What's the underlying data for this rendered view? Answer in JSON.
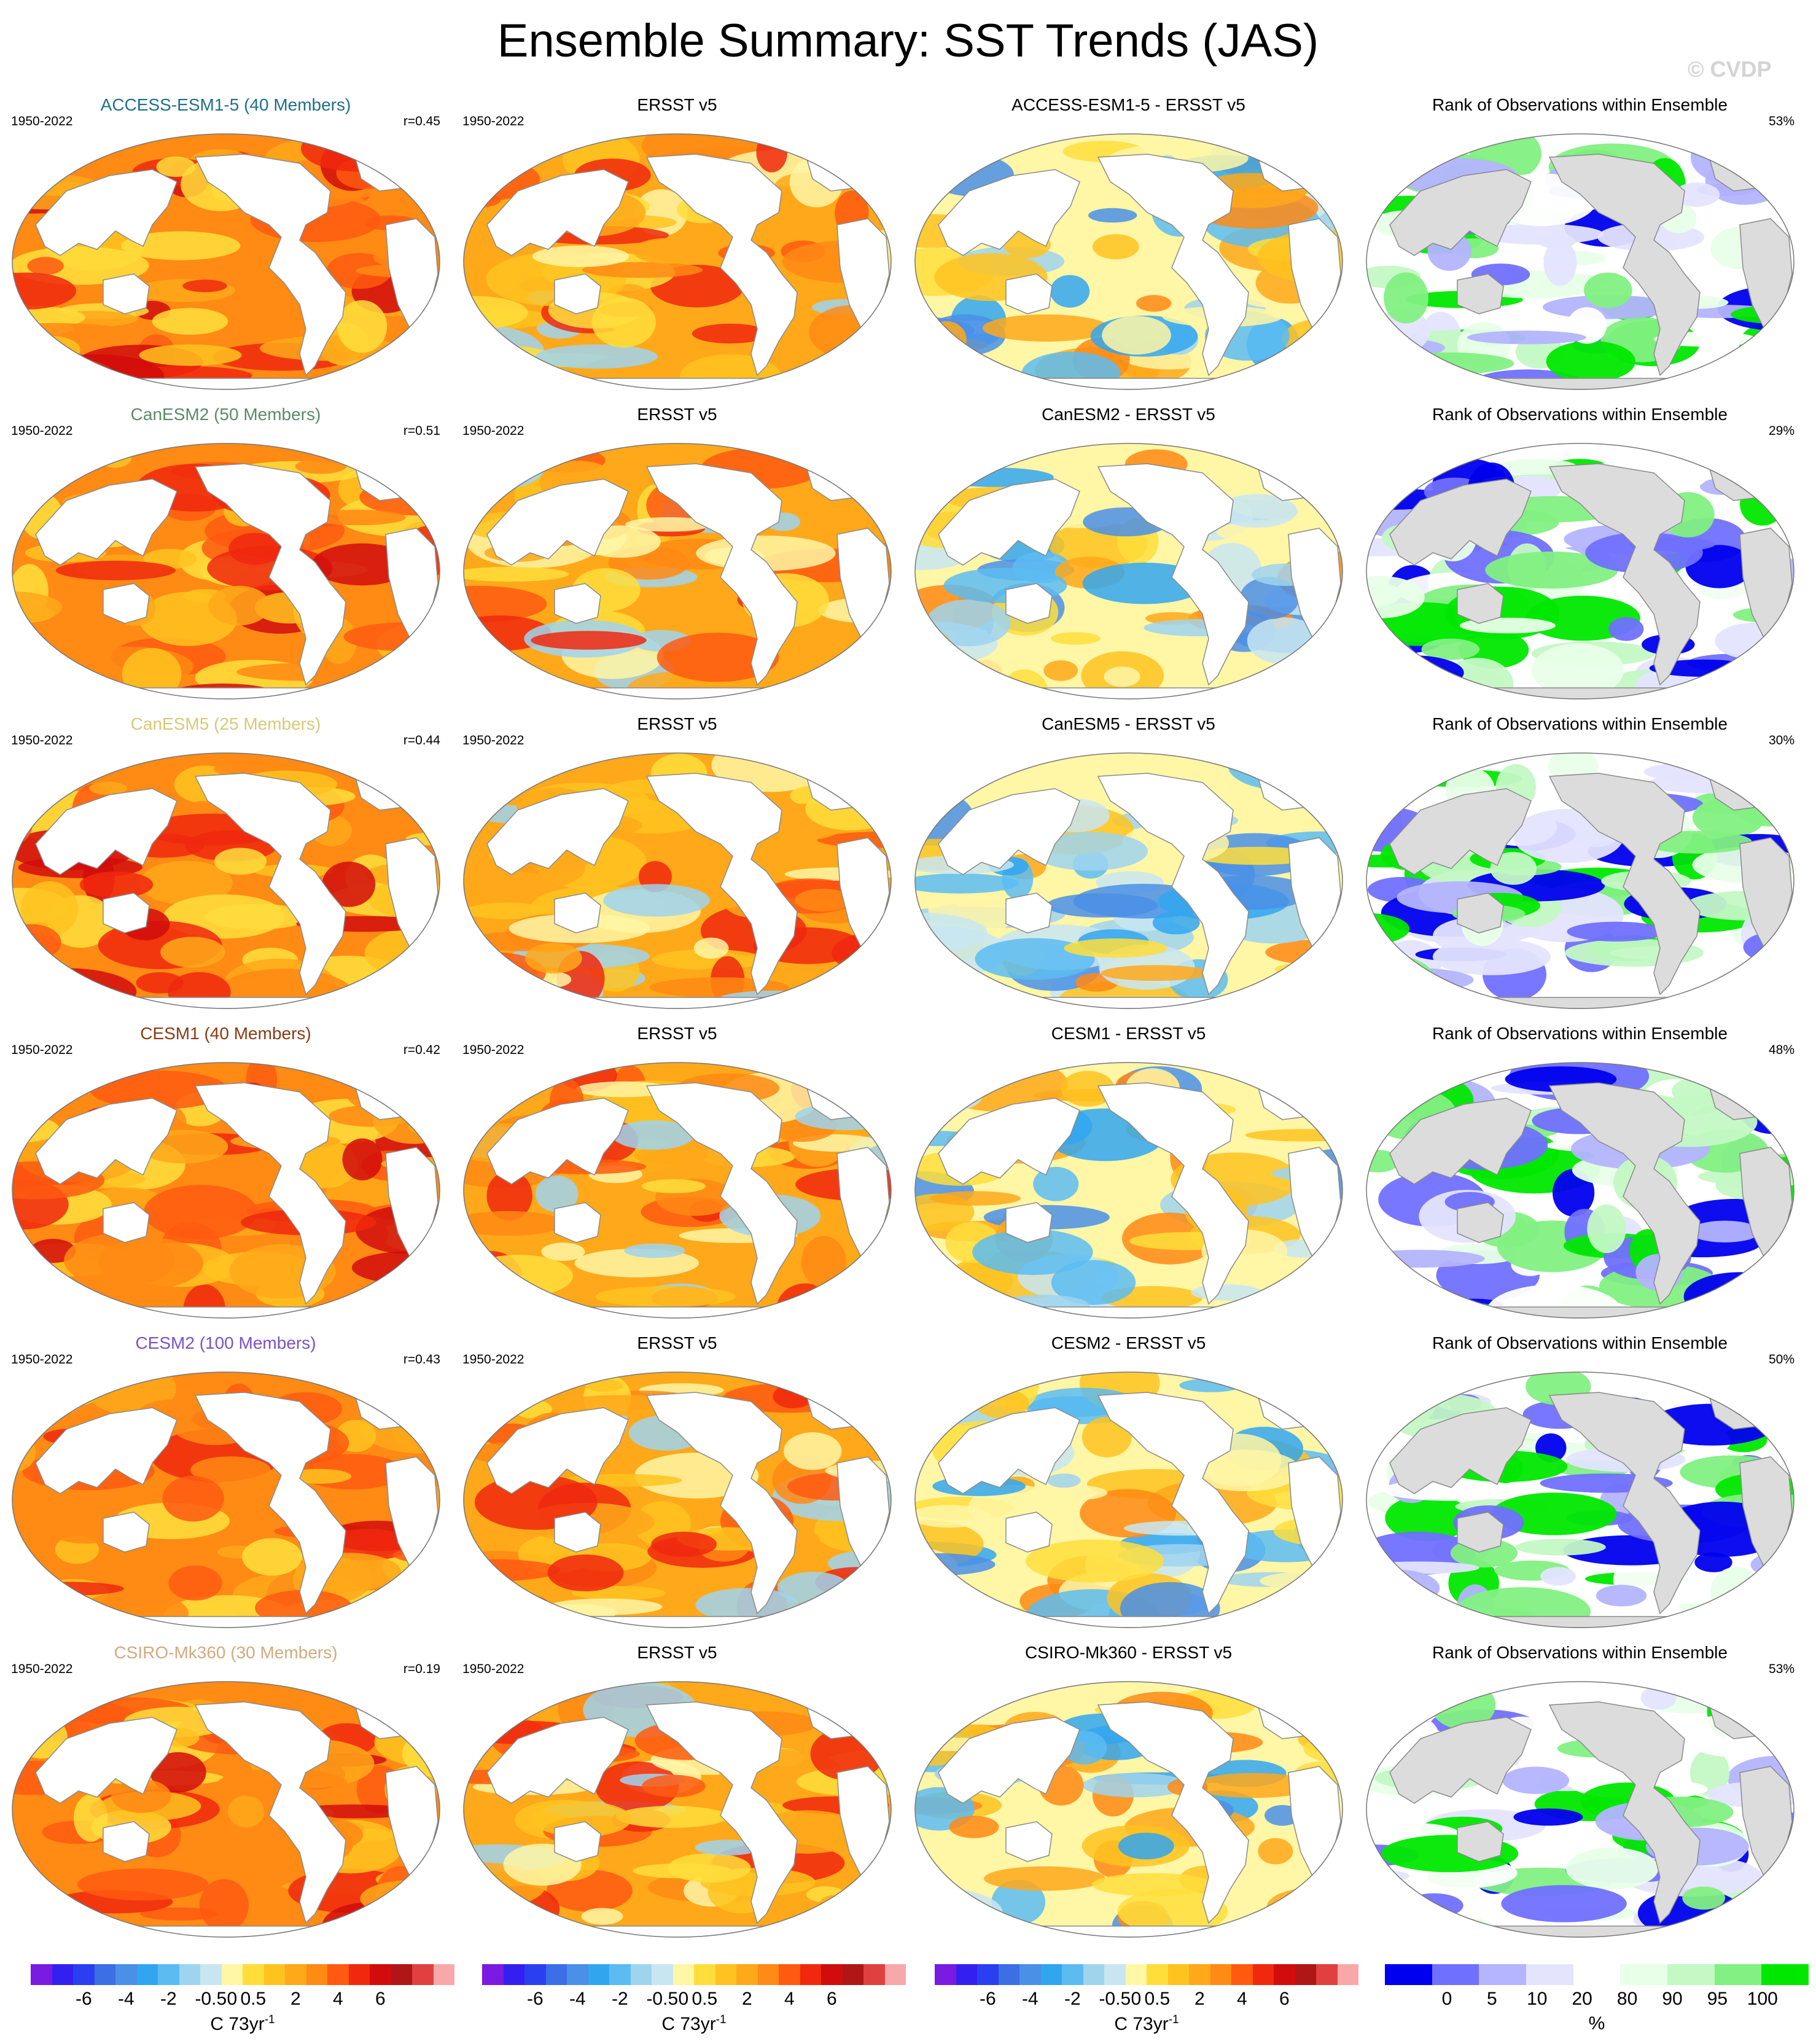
{
  "figure": {
    "title": "Ensemble Summary: SST Trends (JAS)",
    "watermark": "© CVDP"
  },
  "colors": {
    "trend_levels": [
      "#7b1ae0",
      "#3320f0",
      "#2a40f0",
      "#3c6ee6",
      "#4a8fe8",
      "#31a6f0",
      "#5cbcf2",
      "#9fd4ee",
      "#c8e6f2",
      "#fff6a6",
      "#ffde3c",
      "#ffc320",
      "#ffa81a",
      "#ff8a14",
      "#ff5a10",
      "#f0280e",
      "#d20c0c",
      "#b01616",
      "#e04040",
      "#f8a8a8"
    ],
    "rank_levels": [
      "#0000ee",
      "#7070ff",
      "#b4b4ff",
      "#e4e4ff",
      "#ffffff",
      "#e8ffe8",
      "#c4f8c4",
      "#82f082",
      "#00e800"
    ],
    "land_model": "#ffffff",
    "land_rank": "#dcdcdc",
    "coast": "#8a8a8a"
  },
  "colorbars": {
    "trend": {
      "tick_labels": [
        "-6",
        "-4",
        "-2",
        "-0.5",
        "0",
        "0.5",
        "2",
        "4",
        "6"
      ],
      "unit": "C 73yr",
      "unit_sup": "-1"
    },
    "rank": {
      "tick_labels": [
        "0",
        "5",
        "10",
        "20",
        "80",
        "90",
        "95",
        "100"
      ],
      "unit": "%"
    }
  },
  "rows": [
    {
      "model": "ACCESS-ESM1-5 (40 Members)",
      "model_color": "#1f6f8b",
      "period": "1950-2022",
      "r": "r=0.45",
      "obs_title": "ERSST v5",
      "obs_period": "1950-2022",
      "diff_title": "ACCESS-ESM1-5 - ERSST v5",
      "rank_title": "Rank of Observations within Ensemble",
      "rank_pct": "53%"
    },
    {
      "model": "CanESM2 (50 Members)",
      "model_color": "#5a8a6a",
      "period": "1950-2022",
      "r": "r=0.51",
      "obs_title": "ERSST v5",
      "obs_period": "1950-2022",
      "diff_title": "CanESM2 - ERSST v5",
      "rank_title": "Rank of Observations within Ensemble",
      "rank_pct": "29%"
    },
    {
      "model": "CanESM5 (25 Members)",
      "model_color": "#d8c878",
      "period": "1950-2022",
      "r": "r=0.44",
      "obs_title": "ERSST v5",
      "obs_period": "1950-2022",
      "diff_title": "CanESM5 - ERSST v5",
      "rank_title": "Rank of Observations within Ensemble",
      "rank_pct": "30%"
    },
    {
      "model": "CESM1 (40 Members)",
      "model_color": "#8b3a12",
      "period": "1950-2022",
      "r": "r=0.42",
      "obs_title": "ERSST v5",
      "obs_period": "1950-2022",
      "diff_title": "CESM1 - ERSST v5",
      "rank_title": "Rank of Observations within Ensemble",
      "rank_pct": "48%"
    },
    {
      "model": "CESM2 (100 Members)",
      "model_color": "#7a52c8",
      "period": "1950-2022",
      "r": "r=0.43",
      "obs_title": "ERSST v5",
      "obs_period": "1950-2022",
      "diff_title": "CESM2 - ERSST v5",
      "rank_title": "Rank of Observations within Ensemble",
      "rank_pct": "50%"
    },
    {
      "model": "CSIRO-Mk360 (30 Members)",
      "model_color": "#d2aa80",
      "period": "1950-2022",
      "r": "r=0.19",
      "obs_title": "ERSST v5",
      "obs_period": "1950-2022",
      "diff_title": "CSIRO-Mk360 - ERSST v5",
      "rank_title": "Rank of Observations within Ensemble",
      "rank_pct": "53%"
    }
  ],
  "chart_data": {
    "type": "heatmap",
    "description_kind": "global SST trend maps, 6 models x 4 panels",
    "panel_kinds": [
      "model_ensemble_mean",
      "observations",
      "model_minus_observations",
      "rank"
    ],
    "trend_levels": [
      -8,
      -7,
      -6,
      -5,
      -4,
      -3,
      -2,
      -1,
      -0.5,
      0,
      0.5,
      1,
      2,
      3,
      4,
      5,
      6,
      7,
      8
    ],
    "rank_levels": [
      0,
      5,
      10,
      20,
      80,
      90,
      95,
      100
    ],
    "panel_palettes": {
      "model_ensemble_mean": [
        "#ffde3c",
        "#ffc320",
        "#ffa81a",
        "#ff8a14",
        "#ff5a10",
        "#f0280e",
        "#d20c0c"
      ],
      "observations": [
        "#9fd4ee",
        "#fff6a6",
        "#ffde3c",
        "#ffc320",
        "#ffa81a",
        "#ff8a14",
        "#ff5a10",
        "#f0280e"
      ],
      "model_minus_observations": [
        "#4a8fe8",
        "#31a6f0",
        "#5cbcf2",
        "#9fd4ee",
        "#c8e6f2",
        "#fff6a6",
        "#ffde3c",
        "#ffc320",
        "#ffa81a",
        "#ff8a14"
      ],
      "rank": [
        "#0000ee",
        "#7070ff",
        "#b4b4ff",
        "#e4e4ff",
        "#ffffff",
        "#e8ffe8",
        "#c4f8c4",
        "#82f082",
        "#00e800"
      ]
    },
    "rows_summary": [
      {
        "model": "ACCESS-ESM1-5",
        "pattern_correlation": 0.45,
        "rank_percent": 53
      },
      {
        "model": "CanESM2",
        "pattern_correlation": 0.51,
        "rank_percent": 29
      },
      {
        "model": "CanESM5",
        "pattern_correlation": 0.44,
        "rank_percent": 30
      },
      {
        "model": "CESM1",
        "pattern_correlation": 0.42,
        "rank_percent": 48
      },
      {
        "model": "CESM2",
        "pattern_correlation": 0.43,
        "rank_percent": 50
      },
      {
        "model": "CSIRO-Mk360",
        "pattern_correlation": 0.19,
        "rank_percent": 53
      }
    ]
  }
}
